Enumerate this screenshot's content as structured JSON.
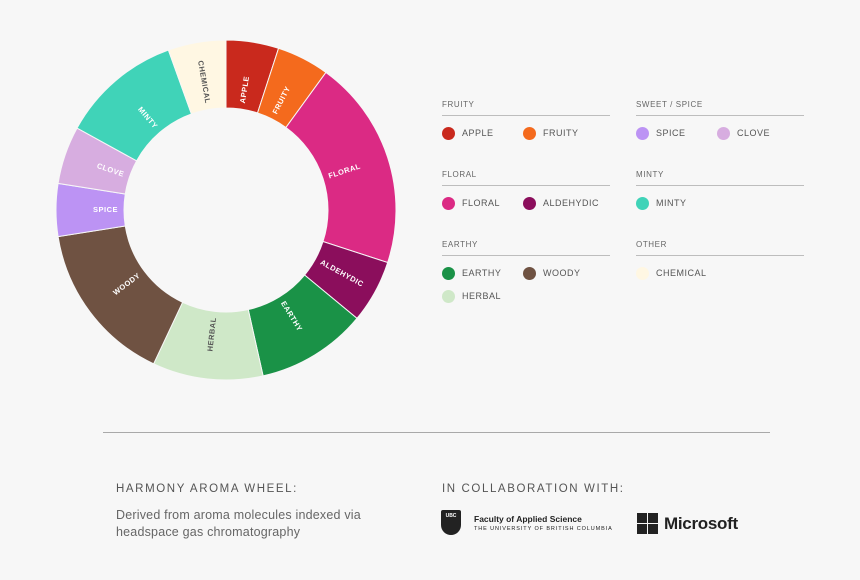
{
  "chart_data": {
    "type": "donut",
    "title": "",
    "slices": [
      {
        "label": "APPLE",
        "value": 5,
        "color": "#c9291d"
      },
      {
        "label": "FRUITY",
        "value": 5,
        "color": "#f46a1d"
      },
      {
        "label": "FLORAL",
        "value": 20,
        "color": "#db2a84"
      },
      {
        "label": "ALDEHYDIC",
        "value": 6,
        "color": "#8b0e5c"
      },
      {
        "label": "EARTHY",
        "value": 10.5,
        "color": "#1a9247"
      },
      {
        "label": "HERBAL",
        "value": 10.5,
        "color": "#cfe8c8"
      },
      {
        "label": "WOODY",
        "value": 15.5,
        "color": "#6f5242"
      },
      {
        "label": "SPICE",
        "value": 5,
        "color": "#bc93f4"
      },
      {
        "label": "CLOVE",
        "value": 5.5,
        "color": "#d7ade0"
      },
      {
        "label": "MINTY",
        "value": 11.5,
        "color": "#40d3b8"
      },
      {
        "label": "CHEMICAL",
        "value": 5.5,
        "color": "#fff7e3"
      }
    ]
  },
  "legend": {
    "groups": [
      {
        "title": "FRUITY",
        "items": [
          {
            "label": "APPLE",
            "color": "#c9291d"
          },
          {
            "label": "FRUITY",
            "color": "#f46a1d"
          }
        ]
      },
      {
        "title": "SWEET / SPICE",
        "items": [
          {
            "label": "SPICE",
            "color": "#bc93f4"
          },
          {
            "label": "CLOVE",
            "color": "#d7ade0"
          }
        ]
      },
      {
        "title": "FLORAL",
        "items": [
          {
            "label": "FLORAL",
            "color": "#db2a84"
          },
          {
            "label": "ALDEHYDIC",
            "color": "#8b0e5c"
          }
        ]
      },
      {
        "title": "MINTY",
        "items": [
          {
            "label": "MINTY",
            "color": "#40d3b8"
          }
        ]
      },
      {
        "title": "EARTHY",
        "items": [
          {
            "label": "EARTHY",
            "color": "#1a9247"
          },
          {
            "label": "WOODY",
            "color": "#6f5242"
          },
          {
            "label": "HERBAL",
            "color": "#cfe8c8"
          }
        ]
      },
      {
        "title": "OTHER",
        "items": [
          {
            "label": "CHEMICAL",
            "color": "#fff7e3"
          }
        ]
      }
    ]
  },
  "footer": {
    "title": "HARMONY AROMA WHEEL:",
    "description": "Derived from aroma molecules indexed via headspace gas chromatography",
    "collab_title": "IN COLLABORATION WITH:",
    "ubc_crest": "UBC",
    "ubc_line1": "Faculty of Applied Science",
    "ubc_line2": "THE UNIVERSITY OF BRITISH COLUMBIA",
    "ms_name": "Microsoft"
  }
}
